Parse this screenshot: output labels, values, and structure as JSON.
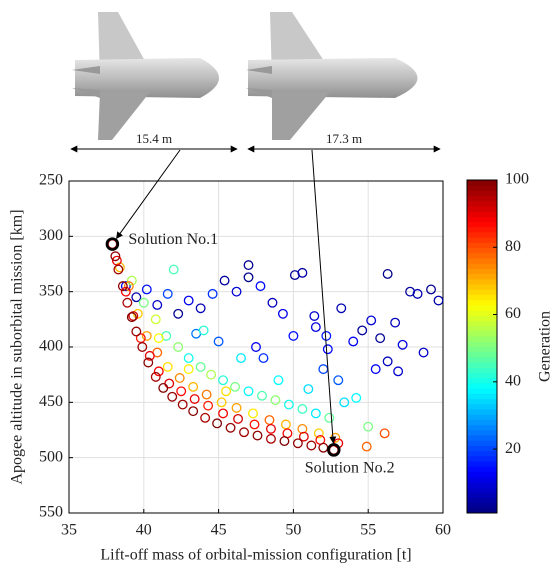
{
  "chart_data": {
    "type": "scatter",
    "xlabel": "Lift-off mass of orbital-mission configuration [t]",
    "ylabel": "Apogee altitude in suborbital mission [km]",
    "xlim": [
      35,
      60
    ],
    "xticks": [
      35,
      40,
      45,
      50,
      55,
      60
    ],
    "ylim": [
      250,
      550
    ],
    "yticks": [
      250,
      300,
      350,
      400,
      450,
      500,
      550
    ],
    "y_reversed": true,
    "grid": true,
    "marker": "open-circle",
    "colormap": "jet",
    "colorbar": {
      "label": "Generation",
      "lim": [
        1,
        100
      ],
      "ticks": [
        20,
        40,
        60,
        80,
        100
      ]
    },
    "dimension_labels": [
      "15.4 m",
      "17.3 m"
    ],
    "annotations": [
      {
        "text": "Solution No.1",
        "x": 37.9,
        "y": 307
      },
      {
        "text": "Solution No.2",
        "x": 52.7,
        "y": 493
      }
    ],
    "x": [
      38.8,
      39.5,
      40.2,
      40.9,
      41.6,
      42.3,
      43.0,
      43.8,
      44.6,
      45.4,
      46.2,
      47.0,
      47.8,
      48.6,
      49.3,
      50.1,
      50.6,
      51.4,
      52.2,
      53.2,
      54.0,
      54.6,
      55.2,
      55.8,
      56.3,
      56.8,
      57.3,
      57.8,
      58.3,
      58.7,
      59.2,
      59.7,
      57.0,
      56.3,
      55.5,
      52.0,
      50.0,
      47.0,
      45.0,
      43.5,
      48.0,
      51.5,
      52.3,
      53.0,
      47.5,
      39.2,
      40.0,
      40.8,
      41.5,
      42.3,
      43.0,
      43.8,
      44.5,
      45.3,
      46.1,
      47.0,
      47.9,
      48.8,
      49.7,
      50.6,
      51.5,
      52.4,
      53.4,
      54.2,
      55.0,
      42.0,
      44.0,
      46.5,
      49.0,
      51.0,
      38.4,
      39.0,
      39.6,
      40.2,
      40.9,
      41.6,
      42.4,
      43.3,
      44.2,
      45.2,
      46.2,
      47.3,
      48.4,
      49.5,
      50.6,
      51.7,
      52.8,
      41.0,
      43.0,
      45.5,
      38.2,
      38.8,
      39.3,
      39.8,
      40.4,
      41.0,
      41.7,
      42.5,
      43.4,
      44.3,
      45.3,
      46.3,
      47.4,
      48.5,
      49.6,
      50.7,
      51.8,
      53.0,
      56.1,
      54.9,
      37.9,
      38.1,
      38.3,
      38.6,
      38.9,
      39.2,
      39.5,
      39.9,
      40.3,
      40.8,
      41.3,
      41.9,
      42.6,
      43.3,
      44.1,
      44.9,
      45.8,
      46.7,
      47.6,
      48.5,
      49.4,
      50.3,
      51.2,
      52.0,
      52.7
    ],
    "values": [
      345,
      355,
      348,
      362,
      352,
      370,
      358,
      365,
      352,
      340,
      350,
      337,
      345,
      360,
      370,
      335,
      333,
      372,
      390,
      365,
      395,
      385,
      376,
      392,
      334,
      378,
      398,
      350,
      352,
      405,
      348,
      358,
      422,
      413,
      420,
      420,
      390,
      326,
      395,
      388,
      410,
      382,
      402,
      430,
      400,
      340,
      360,
      375,
      390,
      400,
      410,
      418,
      425,
      430,
      436,
      440,
      444,
      448,
      452,
      456,
      460,
      464,
      450,
      446,
      472,
      330,
      385,
      410,
      430,
      438,
      328,
      345,
      370,
      390,
      405,
      418,
      428,
      436,
      443,
      450,
      455,
      460,
      466,
      470,
      474,
      478,
      482,
      392,
      420,
      440,
      322,
      350,
      372,
      392,
      408,
      422,
      433,
      440,
      447,
      453,
      460,
      465,
      470,
      474,
      478,
      481,
      484,
      487,
      478,
      490,
      307,
      318,
      330,
      345,
      360,
      373,
      386,
      400,
      414,
      427,
      437,
      445,
      452,
      458,
      464,
      469,
      473,
      477,
      480,
      483,
      485,
      487,
      489,
      491,
      493
    ],
    "generation": [
      10,
      5,
      15,
      8,
      20,
      3,
      12,
      6,
      18,
      4,
      9,
      2,
      14,
      7,
      11,
      3,
      5,
      8,
      16,
      6,
      12,
      4,
      9,
      3,
      2,
      7,
      10,
      4,
      6,
      8,
      3,
      5,
      9,
      7,
      12,
      20,
      15,
      3,
      22,
      25,
      18,
      10,
      14,
      22,
      12,
      55,
      50,
      58,
      45,
      52,
      40,
      48,
      55,
      42,
      50,
      38,
      46,
      52,
      40,
      44,
      36,
      48,
      35,
      38,
      50,
      45,
      42,
      36,
      38,
      35,
      70,
      75,
      68,
      72,
      78,
      66,
      74,
      70,
      76,
      68,
      72,
      65,
      78,
      70,
      74,
      68,
      72,
      62,
      64,
      66,
      90,
      88,
      92,
      86,
      90,
      88,
      91,
      87,
      90,
      85,
      89,
      92,
      86,
      90,
      88,
      91,
      87,
      90,
      80,
      78,
      100,
      98,
      97,
      99,
      96,
      100,
      98,
      97,
      99,
      96,
      100,
      98,
      97,
      99,
      96,
      100,
      98,
      97,
      99,
      96,
      100,
      98,
      97,
      99,
      100
    ]
  }
}
